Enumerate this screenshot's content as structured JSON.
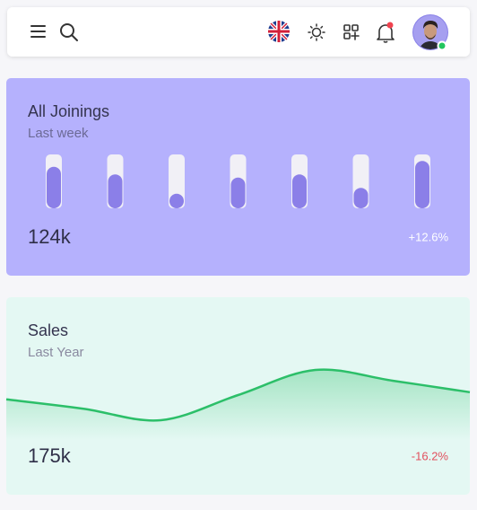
{
  "chart_data": [
    {
      "type": "bar",
      "title": "All Joinings",
      "subtitle": "Last week",
      "headline": "124k",
      "change": "+12.6%",
      "values": [
        77,
        63,
        27,
        57,
        63,
        38,
        88
      ],
      "ylim": [
        0,
        100
      ],
      "color": "#8b7fe8",
      "track_color": "#f1f0f6"
    },
    {
      "type": "line",
      "title": "Sales",
      "subtitle": "Last Year",
      "headline": "175k",
      "change": "-16.2%",
      "values": [
        44,
        31,
        15,
        50,
        85,
        70,
        54
      ],
      "ylim": [
        0,
        100
      ],
      "color": "#2cbf69"
    }
  ]
}
